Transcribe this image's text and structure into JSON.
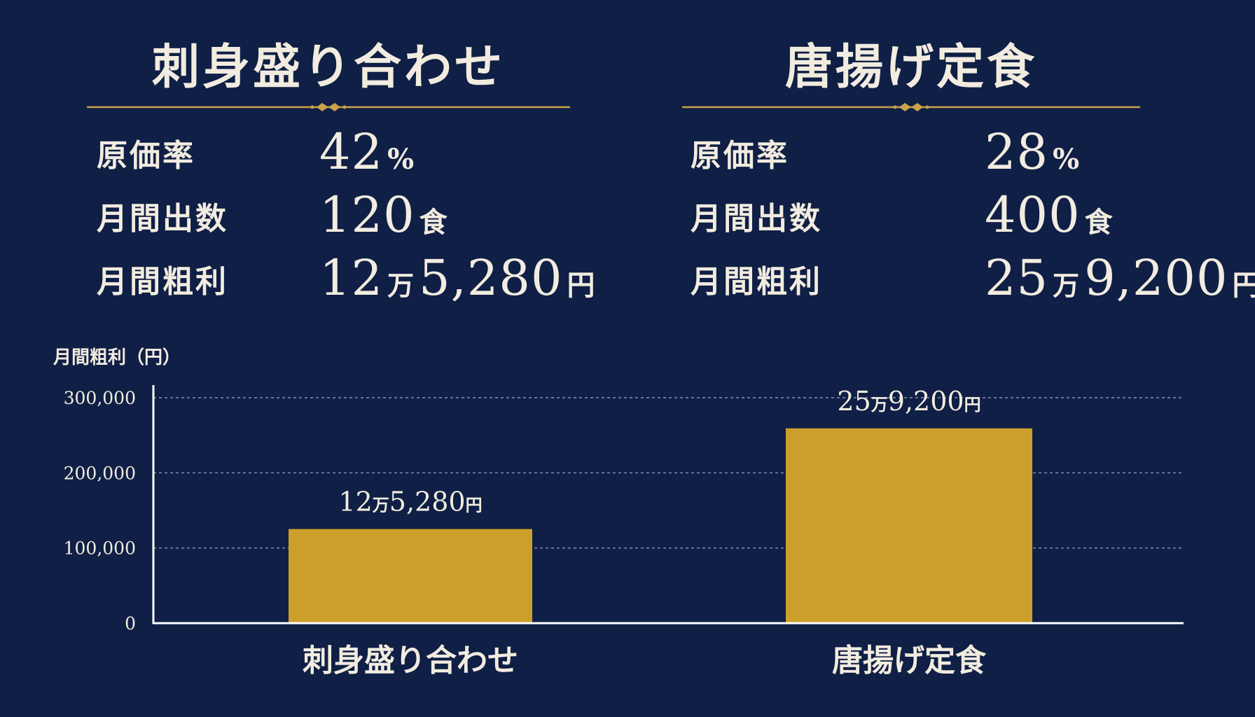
{
  "panels": [
    {
      "title": "刺身盛り合わせ",
      "stats": {
        "cost_rate_label": "原価率",
        "cost_rate_value": "42",
        "cost_rate_unit": "%",
        "monthly_orders_label": "月間出数",
        "monthly_orders_value": "120",
        "monthly_orders_unit": "食",
        "monthly_profit_label": "月間粗利",
        "monthly_profit_man": "12",
        "monthly_profit_man_unit": "万",
        "monthly_profit_rest": "5,280",
        "monthly_profit_yen": "円"
      }
    },
    {
      "title": "唐揚げ定食",
      "stats": {
        "cost_rate_label": "原価率",
        "cost_rate_value": "28",
        "cost_rate_unit": "%",
        "monthly_orders_label": "月間出数",
        "monthly_orders_value": "400",
        "monthly_orders_unit": "食",
        "monthly_profit_label": "月間粗利",
        "monthly_profit_man": "25",
        "monthly_profit_man_unit": "万",
        "monthly_profit_rest": "9,200",
        "monthly_profit_yen": "円"
      }
    }
  ],
  "colors": {
    "background": "#0f1f45",
    "gold": "#cc9f2b",
    "divider_gold": "#c9a24a",
    "text": "#f2ece0",
    "grid": "#8a93ad"
  },
  "chart_data": {
    "type": "bar",
    "ylabel": "月間粗利（円）",
    "categories": [
      "刺身盛り合わせ",
      "唐揚げ定食"
    ],
    "values": [
      125280,
      259200
    ],
    "data_labels": [
      {
        "num1": "12",
        "unit1": "万",
        "num2": "5,280",
        "unit2": "円"
      },
      {
        "num1": "25",
        "unit1": "万",
        "num2": "9,200",
        "unit2": "円"
      }
    ],
    "ylim": [
      0,
      300000
    ],
    "yticks": [
      0,
      100000,
      200000,
      300000
    ],
    "ytick_labels": [
      "0",
      "100,000",
      "200,000",
      "300,000"
    ],
    "grid": true,
    "grid_style": "dashed"
  }
}
